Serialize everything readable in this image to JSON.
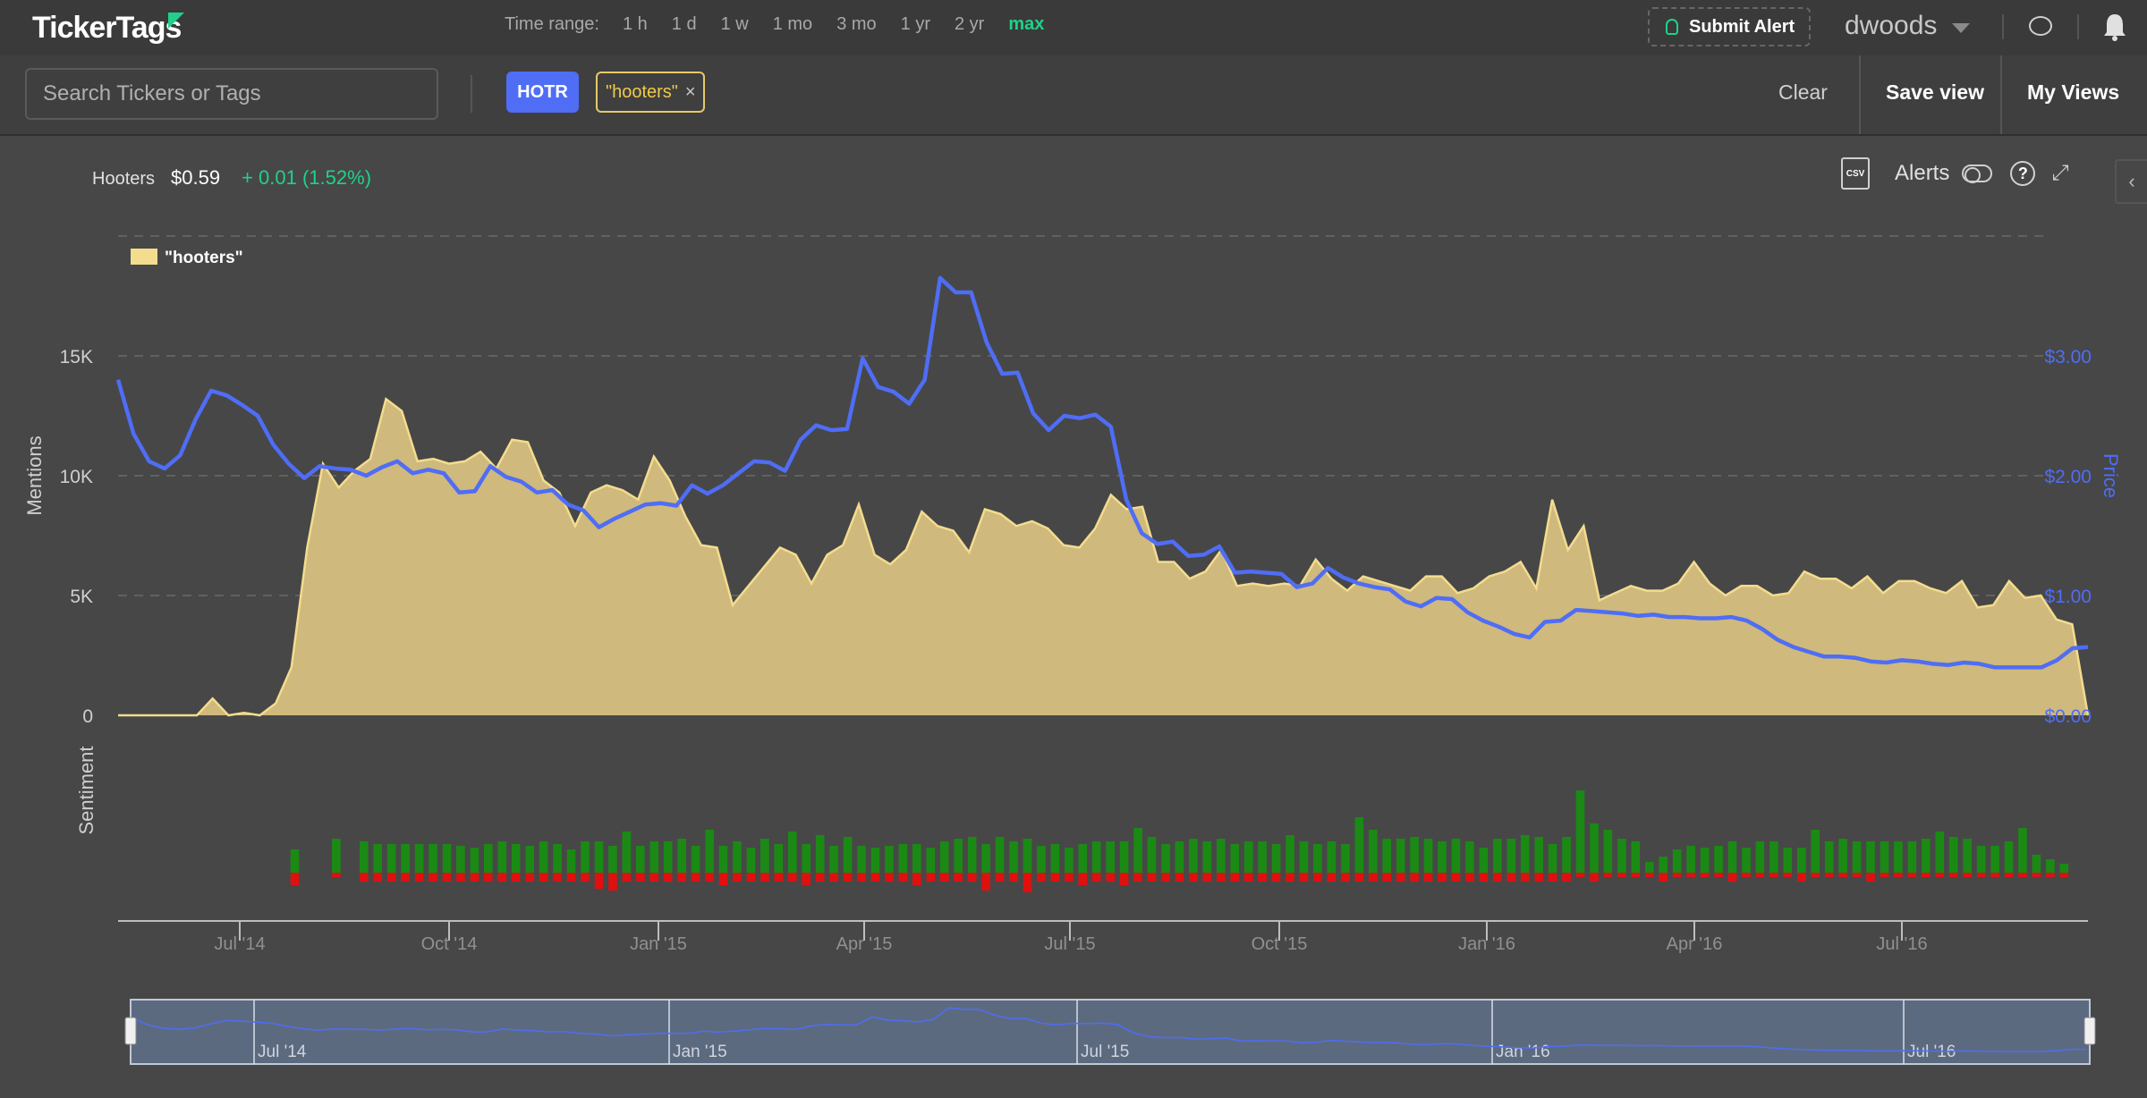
{
  "app": {
    "logo_text": "TickerTags",
    "time_range": {
      "label": "Time range:",
      "options": [
        "1 h",
        "1 d",
        "1 w",
        "1 mo",
        "3 mo",
        "1 yr",
        "2 yr",
        "max"
      ],
      "selected": "max"
    },
    "submit_alert_label": "Submit Alert",
    "username": "dwoods"
  },
  "toolbar": {
    "search_placeholder": "Search Tickers or Tags",
    "ticker_chip": "HOTR",
    "tag_chip": "\"hooters\"",
    "tag_remove": "×",
    "clear_label": "Clear",
    "save_view_label": "Save view",
    "my_views_label": "My Views"
  },
  "quote": {
    "name": "Hooters",
    "price": "$0.59",
    "change": "+ 0.01 (1.52%)"
  },
  "chart_tools": {
    "csv_label": "CSV",
    "alerts_label": "Alerts",
    "help_label": "?"
  },
  "colors": {
    "mentions_fill": "#d4bd7e",
    "mentions_stroke": "#f3dc8e",
    "price_line": "#4f6df5",
    "sentiment_positive": "#1a8a14",
    "sentiment_negative": "#e01010",
    "accent_green": "#1fd18a"
  },
  "chart_data": {
    "type": "area",
    "legend_position": "top-left",
    "grid": true,
    "ylabel": "Mentions",
    "y2label": "Price",
    "ylim": [
      0,
      20000
    ],
    "y2lim": [
      0,
      4
    ],
    "y_ticks": [
      0,
      5000,
      10000,
      15000
    ],
    "y_tick_labels": [
      "0",
      "5K",
      "10K",
      "15K"
    ],
    "y2_ticks": [
      0,
      1,
      2,
      3
    ],
    "y2_tick_labels": [
      "$0.00",
      "$1.00",
      "$2.00",
      "$3.00"
    ],
    "x_tick_labels": [
      "Jul '14",
      "Oct '14",
      "Jan '15",
      "Apr '15",
      "Jul '15",
      "Oct '15",
      "Jan '16",
      "Apr '16",
      "Jul '16"
    ],
    "series": [
      {
        "name": "\"hooters\"",
        "axis": "left",
        "values": [
          0,
          0,
          0,
          0,
          0,
          0,
          700,
          0,
          100,
          0,
          500,
          2000,
          7000,
          10500,
          9500,
          10200,
          10700,
          13200,
          12700,
          10600,
          10700,
          10500,
          10600,
          11000,
          10300,
          11500,
          11400,
          9800,
          9300,
          7900,
          9300,
          9600,
          9400,
          9000,
          10800,
          9800,
          8300,
          7100,
          7000,
          4600,
          5400,
          6200,
          7000,
          6700,
          5500,
          6700,
          7100,
          8800,
          6700,
          6300,
          6900,
          8500,
          7900,
          7700,
          6800,
          8600,
          8400,
          7900,
          8100,
          7800,
          7100,
          7000,
          7800,
          9200,
          8600,
          8700,
          6400,
          6400,
          5700,
          6000,
          6900,
          5400,
          5500,
          5400,
          5500,
          5400,
          6500,
          5700,
          5200,
          5800,
          5600,
          5400,
          5200,
          5800,
          5800,
          5100,
          5300,
          5800,
          6000,
          6400,
          5300,
          9000,
          6900,
          7900,
          4800,
          5100,
          5400,
          5200,
          5200,
          5500,
          6400,
          5500,
          5000,
          5400,
          5400,
          5000,
          5100,
          6000,
          5700,
          5700,
          5300,
          5800,
          5100,
          5600,
          5600,
          5300,
          5100,
          5600,
          4500,
          4600,
          5600,
          4900,
          5000,
          4000,
          3800,
          0
        ]
      },
      {
        "name": "Price",
        "axis": "right",
        "values": [
          2.8,
          2.35,
          2.12,
          2.06,
          2.17,
          2.47,
          2.71,
          2.67,
          2.59,
          2.5,
          2.26,
          2.1,
          1.98,
          2.08,
          2.06,
          2.05,
          2.0,
          2.07,
          2.12,
          2.02,
          2.05,
          2.02,
          1.86,
          1.87,
          2.08,
          1.99,
          1.95,
          1.86,
          1.88,
          1.76,
          1.71,
          1.57,
          1.64,
          1.7,
          1.76,
          1.77,
          1.75,
          1.92,
          1.85,
          1.92,
          2.02,
          2.12,
          2.11,
          2.04,
          2.3,
          2.42,
          2.38,
          2.39,
          2.98,
          2.74,
          2.7,
          2.6,
          2.8,
          3.65,
          3.53,
          3.53,
          3.11,
          2.85,
          2.86,
          2.52,
          2.38,
          2.5,
          2.48,
          2.51,
          2.41,
          1.8,
          1.52,
          1.43,
          1.45,
          1.33,
          1.34,
          1.41,
          1.19,
          1.2,
          1.19,
          1.18,
          1.07,
          1.1,
          1.23,
          1.15,
          1.1,
          1.07,
          1.05,
          0.95,
          0.91,
          0.98,
          0.97,
          0.86,
          0.79,
          0.74,
          0.68,
          0.65,
          0.78,
          0.79,
          0.88,
          0.87,
          0.86,
          0.85,
          0.83,
          0.84,
          0.82,
          0.82,
          0.81,
          0.81,
          0.82,
          0.79,
          0.72,
          0.63,
          0.57,
          0.53,
          0.49,
          0.49,
          0.48,
          0.45,
          0.44,
          0.46,
          0.45,
          0.43,
          0.42,
          0.44,
          0.43,
          0.4,
          0.4,
          0.4,
          0.4,
          0.46,
          0.56,
          0.57
        ]
      }
    ],
    "sentiment": {
      "label": "Sentiment",
      "positive": [
        0,
        0,
        0,
        0,
        0,
        0,
        26,
        0,
        0,
        38,
        0,
        35,
        32,
        32,
        32,
        32,
        32,
        32,
        30,
        28,
        32,
        35,
        32,
        30,
        35,
        32,
        26,
        35,
        35,
        30,
        46,
        30,
        35,
        35,
        38,
        30,
        48,
        30,
        35,
        28,
        38,
        32,
        46,
        32,
        42,
        30,
        40,
        30,
        28,
        30,
        32,
        32,
        28,
        35,
        38,
        40,
        32,
        40,
        35,
        38,
        30,
        32,
        28,
        32,
        35,
        35,
        35,
        50,
        40,
        32,
        35,
        38,
        35,
        38,
        32,
        35,
        35,
        32,
        42,
        35,
        32,
        35,
        32,
        62,
        48,
        38,
        38,
        40,
        38,
        35,
        38,
        35,
        28,
        38,
        38,
        42,
        40,
        32,
        40,
        92,
        55,
        48,
        38,
        35,
        12,
        18,
        26,
        30,
        28,
        30,
        35,
        28,
        35,
        35,
        28,
        28,
        48,
        35,
        38,
        35,
        35,
        35,
        35,
        35,
        38,
        46,
        40,
        38,
        30,
        30,
        35,
        50,
        20,
        15,
        10
      ],
      "negative": [
        0,
        0,
        0,
        0,
        0,
        0,
        14,
        0,
        0,
        5,
        0,
        10,
        10,
        10,
        10,
        10,
        10,
        10,
        10,
        10,
        10,
        10,
        10,
        10,
        10,
        10,
        10,
        10,
        18,
        20,
        10,
        10,
        10,
        10,
        10,
        10,
        10,
        14,
        10,
        10,
        10,
        10,
        10,
        14,
        10,
        10,
        10,
        10,
        10,
        10,
        10,
        14,
        10,
        10,
        10,
        10,
        20,
        10,
        10,
        22,
        10,
        10,
        10,
        14,
        10,
        10,
        14,
        10,
        10,
        10,
        10,
        10,
        10,
        10,
        10,
        10,
        10,
        10,
        10,
        10,
        10,
        10,
        10,
        10,
        10,
        10,
        10,
        10,
        10,
        10,
        10,
        10,
        10,
        10,
        10,
        10,
        10,
        10,
        10,
        5,
        10,
        5,
        5,
        5,
        5,
        10,
        5,
        5,
        5,
        5,
        10,
        5,
        5,
        5,
        5,
        10,
        5,
        5,
        5,
        5,
        10,
        5,
        5,
        5,
        5,
        5,
        5,
        5,
        5,
        5,
        5,
        5,
        5,
        5,
        5
      ]
    },
    "navigator": {
      "tick_labels": [
        "Jul '14",
        "Jan '15",
        "Jul '15",
        "Jan '16",
        "Jul '16"
      ]
    }
  }
}
